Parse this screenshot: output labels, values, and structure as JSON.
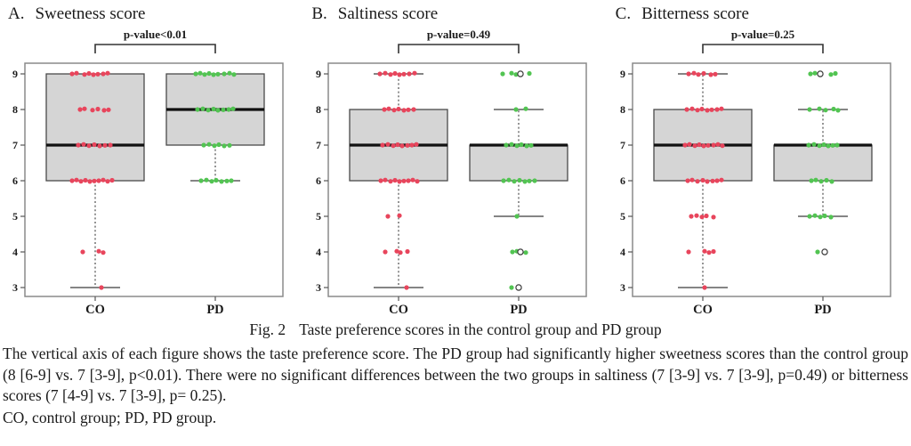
{
  "colors": {
    "co_points": "#e8455c",
    "pd_points": "#52c452",
    "box_fill": "#d5d5d5",
    "box_stroke": "#4a4a4a",
    "median": "#111111",
    "whisker": "#3c3c3c",
    "plot_border": "#8a8a8a",
    "outlier_stroke": "#3a3a3a",
    "bracket": "#333333",
    "text": "#1a1a1a"
  },
  "chart_data": [
    {
      "type": "boxplot",
      "panel_label": "A.",
      "title": "Sweetness score",
      "p_label": "p-value<0.01",
      "ylim": [
        2.8,
        9.4
      ],
      "yticks": [
        9,
        8,
        7,
        6,
        5,
        4,
        3
      ],
      "categories": [
        "CO",
        "PD"
      ],
      "groups": [
        {
          "label": "CO",
          "color": "#e8455c",
          "q1": 6,
          "median": 7,
          "q3": 9,
          "whisker_low": 3,
          "whisker_high": 9,
          "points": [
            {
              "score": 9,
              "dx": [
                -26,
                -21,
                -12,
                -7,
                -2,
                3,
                9,
                14
              ]
            },
            {
              "score": 8,
              "dx": [
                -17,
                -12,
                -3,
                3,
                10,
                15
              ]
            },
            {
              "score": 7,
              "dx": [
                -19,
                -13,
                -7,
                -1,
                5,
                11,
                17
              ]
            },
            {
              "score": 6,
              "dx": [
                -26,
                -21,
                -16,
                -11,
                -6,
                -1,
                4,
                9,
                14,
                19
              ]
            },
            {
              "score": 4,
              "dx": [
                -14,
                4,
                9
              ]
            },
            {
              "score": 3,
              "dx": [
                7
              ]
            }
          ],
          "outliers": []
        },
        {
          "label": "PD",
          "color": "#52c452",
          "q1": 7,
          "median": 8,
          "q3": 9,
          "whisker_low": 6,
          "whisker_high": 9,
          "points": [
            {
              "score": 9,
              "dx": [
                -22,
                -17,
                -12,
                -7,
                -2,
                3,
                10,
                16,
                21
              ]
            },
            {
              "score": 8,
              "dx": [
                -20,
                -14,
                -8,
                -2,
                3,
                9,
                15,
                20
              ]
            },
            {
              "score": 7,
              "dx": [
                -13,
                -7,
                -1,
                4,
                10,
                16
              ]
            },
            {
              "score": 6,
              "dx": [
                -16,
                -10,
                -4,
                1,
                7,
                13,
                18
              ]
            }
          ],
          "outliers": []
        }
      ]
    },
    {
      "type": "boxplot",
      "panel_label": "B.",
      "title": "Saltiness score",
      "p_label": "p-value=0.49",
      "ylim": [
        2.8,
        9.4
      ],
      "yticks": [
        9,
        8,
        7,
        6,
        5,
        4,
        3
      ],
      "categories": [
        "CO",
        "PD"
      ],
      "groups": [
        {
          "label": "CO",
          "color": "#e8455c",
          "q1": 6,
          "median": 7,
          "q3": 8,
          "whisker_low": 3,
          "whisker_high": 9,
          "points": [
            {
              "score": 9,
              "dx": [
                -21,
                -15,
                -9,
                -4,
                1,
                6,
                12,
                18
              ]
            },
            {
              "score": 8,
              "dx": [
                -16,
                -11,
                -5,
                0,
                6,
                11,
                17
              ]
            },
            {
              "score": 7,
              "dx": [
                -18,
                -12,
                -6,
                -1,
                4,
                10,
                15,
                20
              ]
            },
            {
              "score": 6,
              "dx": [
                -20,
                -15,
                -9,
                -4,
                1,
                6,
                11,
                16,
                21
              ]
            },
            {
              "score": 5,
              "dx": [
                -12,
                1
              ]
            },
            {
              "score": 4,
              "dx": [
                -15,
                -2,
                2,
                10
              ]
            },
            {
              "score": 3,
              "dx": [
                9
              ]
            }
          ],
          "outliers": []
        },
        {
          "label": "PD",
          "color": "#52c452",
          "q1": 6,
          "median": 7,
          "q3": 7,
          "whisker_low": 5,
          "whisker_high": 8,
          "points": [
            {
              "score": 9,
              "dx": [
                -18,
                -8,
                -3,
                12
              ]
            },
            {
              "score": 8,
              "dx": [
                -3,
                8
              ]
            },
            {
              "score": 7,
              "dx": [
                -14,
                -8,
                -2,
                3,
                9,
                14
              ]
            },
            {
              "score": 6,
              "dx": [
                -17,
                -11,
                -5,
                1,
                7,
                12,
                18
              ]
            },
            {
              "score": 5,
              "dx": [
                -2
              ]
            },
            {
              "score": 4,
              "dx": [
                -7,
                -2,
                8
              ]
            },
            {
              "score": 3,
              "dx": [
                -8
              ]
            }
          ],
          "outliers": [
            {
              "score": 9,
              "dx": 2
            },
            {
              "score": 4,
              "dx": 2
            },
            {
              "score": 3,
              "dx": 0
            }
          ]
        }
      ]
    },
    {
      "type": "boxplot",
      "panel_label": "C.",
      "title": "Bitterness score",
      "p_label": "p-value=0.25",
      "ylim": [
        2.8,
        9.4
      ],
      "yticks": [
        9,
        8,
        7,
        6,
        5,
        4,
        3
      ],
      "categories": [
        "CO",
        "PD"
      ],
      "groups": [
        {
          "label": "CO",
          "color": "#e8455c",
          "q1": 6,
          "median": 7,
          "q3": 8,
          "whisker_low": 3,
          "whisker_high": 9,
          "points": [
            {
              "score": 9,
              "dx": [
                -16,
                -10,
                -5,
                1,
                9,
                14
              ]
            },
            {
              "score": 8,
              "dx": [
                -18,
                -12,
                -6,
                -1,
                5,
                10,
                16,
                21
              ]
            },
            {
              "score": 7,
              "dx": [
                -20,
                -15,
                -9,
                -4,
                1,
                6,
                12,
                17,
                22
              ]
            },
            {
              "score": 6,
              "dx": [
                -17,
                -12,
                -6,
                0,
                5,
                11,
                16,
                21
              ]
            },
            {
              "score": 5,
              "dx": [
                -13,
                -7,
                -1,
                4,
                12
              ]
            },
            {
              "score": 4,
              "dx": [
                -16,
                2,
                7,
                12
              ]
            },
            {
              "score": 3,
              "dx": [
                2
              ]
            }
          ],
          "outliers": []
        },
        {
          "label": "PD",
          "color": "#52c452",
          "q1": 6,
          "median": 7,
          "q3": 7,
          "whisker_low": 5,
          "whisker_high": 8,
          "points": [
            {
              "score": 9,
              "dx": [
                -14,
                -9,
                9,
                14
              ]
            },
            {
              "score": 8,
              "dx": [
                -15,
                -4,
                3,
                12,
                17
              ]
            },
            {
              "score": 7,
              "dx": [
                -16,
                -10,
                -4,
                1,
                6,
                11,
                16
              ]
            },
            {
              "score": 6,
              "dx": [
                -13,
                -8,
                -2,
                4,
                10
              ]
            },
            {
              "score": 5,
              "dx": [
                -15,
                -9,
                -3,
                2,
                9
              ]
            },
            {
              "score": 4,
              "dx": [
                -6
              ]
            }
          ],
          "outliers": [
            {
              "score": 9,
              "dx": -3
            },
            {
              "score": 4,
              "dx": 2
            }
          ]
        }
      ]
    }
  ],
  "caption": {
    "figure_label": "Fig.  2",
    "figure_title": "Taste preference scores in the control group and PD group",
    "body": "The vertical axis of each figure shows the taste preference score. The PD group had significantly higher sweetness scores than the control group (8 [6-9] vs. 7 [3-9], p<0.01). There were no significant differences between the two groups in saltiness (7 [3-9] vs. 7 [3-9], p=0.49) or bitterness scores (7 [4-9] vs. 7 [3-9], p= 0.25).",
    "abbreviations": "CO, control group; PD, PD group."
  }
}
